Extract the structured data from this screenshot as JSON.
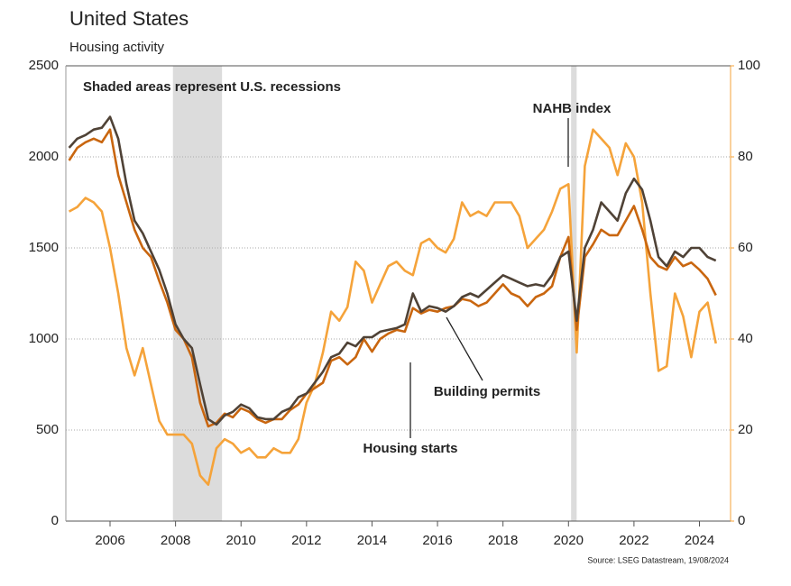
{
  "chart_data": {
    "type": "line",
    "title": "United States",
    "subtitle": "Housing activity",
    "source": "Source: LSEG Datastream, 19/08/2024",
    "recession_note": "Shaded areas represent U.S. recessions",
    "recessions": [
      [
        2007.92,
        2009.42
      ],
      [
        2020.08,
        2020.25
      ]
    ],
    "x": [
      2004.75,
      2005,
      2005.25,
      2005.5,
      2005.75,
      2006,
      2006.25,
      2006.5,
      2006.75,
      2007,
      2007.25,
      2007.5,
      2007.75,
      2008,
      2008.25,
      2008.5,
      2008.75,
      2009,
      2009.25,
      2009.5,
      2009.75,
      2010,
      2010.25,
      2010.5,
      2010.75,
      2011,
      2011.25,
      2011.5,
      2011.75,
      2012,
      2012.25,
      2012.5,
      2012.75,
      2013,
      2013.25,
      2013.5,
      2013.75,
      2014,
      2014.25,
      2014.5,
      2014.75,
      2015,
      2015.25,
      2015.5,
      2015.75,
      2016,
      2016.25,
      2016.5,
      2016.75,
      2017,
      2017.25,
      2017.5,
      2017.75,
      2018,
      2018.25,
      2018.5,
      2018.75,
      2019,
      2019.25,
      2019.5,
      2019.75,
      2020,
      2020.25,
      2020.5,
      2020.75,
      2021,
      2021.25,
      2021.5,
      2021.75,
      2022,
      2022.25,
      2022.5,
      2022.75,
      2023,
      2023.25,
      2023.5,
      2023.75,
      2024,
      2024.25,
      2024.5
    ],
    "series": [
      {
        "name": "NAHB index",
        "color": "#f5a33a",
        "axis": "y2",
        "values": [
          68,
          69,
          71,
          70,
          68,
          60,
          50,
          38,
          32,
          38,
          30,
          22,
          19,
          19,
          19,
          17,
          10,
          8,
          16,
          18,
          17,
          15,
          16,
          14,
          14,
          16,
          15,
          15,
          18,
          26,
          30,
          37,
          46,
          44,
          47,
          57,
          55,
          48,
          52,
          56,
          57,
          55,
          54,
          61,
          62,
          60,
          59,
          62,
          70,
          67,
          68,
          67,
          70,
          70,
          70,
          67,
          60,
          62,
          64,
          68,
          73,
          74,
          37,
          78,
          86,
          84,
          82,
          76,
          83,
          80,
          70,
          50,
          33,
          34,
          50,
          45,
          36,
          46,
          48,
          39
        ]
      },
      {
        "name": "Housing starts",
        "color": "#c9660f",
        "values": [
          1980,
          2050,
          2080,
          2100,
          2080,
          2150,
          1900,
          1750,
          1600,
          1500,
          1450,
          1320,
          1200,
          1050,
          1000,
          900,
          650,
          520,
          540,
          590,
          570,
          620,
          600,
          560,
          540,
          560,
          560,
          610,
          640,
          700,
          730,
          760,
          880,
          900,
          860,
          900,
          1000,
          930,
          1000,
          1030,
          1050,
          1040,
          1170,
          1140,
          1160,
          1150,
          1170,
          1180,
          1220,
          1210,
          1180,
          1200,
          1250,
          1300,
          1250,
          1230,
          1180,
          1230,
          1250,
          1290,
          1450,
          1560,
          1050,
          1450,
          1520,
          1600,
          1570,
          1570,
          1650,
          1730,
          1600,
          1450,
          1400,
          1380,
          1450,
          1400,
          1420,
          1380,
          1330,
          1240
        ]
      },
      {
        "name": "Building permits",
        "color": "#4f4236",
        "values": [
          2050,
          2100,
          2120,
          2150,
          2160,
          2220,
          2100,
          1850,
          1650,
          1580,
          1480,
          1380,
          1250,
          1080,
          1000,
          950,
          750,
          560,
          530,
          580,
          600,
          640,
          620,
          570,
          560,
          560,
          600,
          620,
          680,
          700,
          760,
          820,
          900,
          920,
          980,
          960,
          1010,
          1010,
          1040,
          1050,
          1060,
          1080,
          1250,
          1150,
          1180,
          1170,
          1150,
          1180,
          1230,
          1250,
          1230,
          1270,
          1310,
          1350,
          1330,
          1310,
          1290,
          1300,
          1290,
          1350,
          1450,
          1480,
          1100,
          1500,
          1600,
          1750,
          1700,
          1650,
          1800,
          1880,
          1820,
          1650,
          1450,
          1400,
          1480,
          1450,
          1500,
          1500,
          1450,
          1430
        ]
      }
    ],
    "xlim": [
      2004.65,
      2024.95
    ],
    "xticks": [
      2006,
      2008,
      2010,
      2012,
      2014,
      2016,
      2018,
      2020,
      2022,
      2024
    ],
    "ylim": [
      0,
      2500
    ],
    "yticks": [
      0,
      500,
      1000,
      1500,
      2000,
      2500
    ],
    "y2lim": [
      0,
      100
    ],
    "y2ticks": [
      0,
      20,
      40,
      60,
      80,
      100
    ],
    "grid": true
  }
}
